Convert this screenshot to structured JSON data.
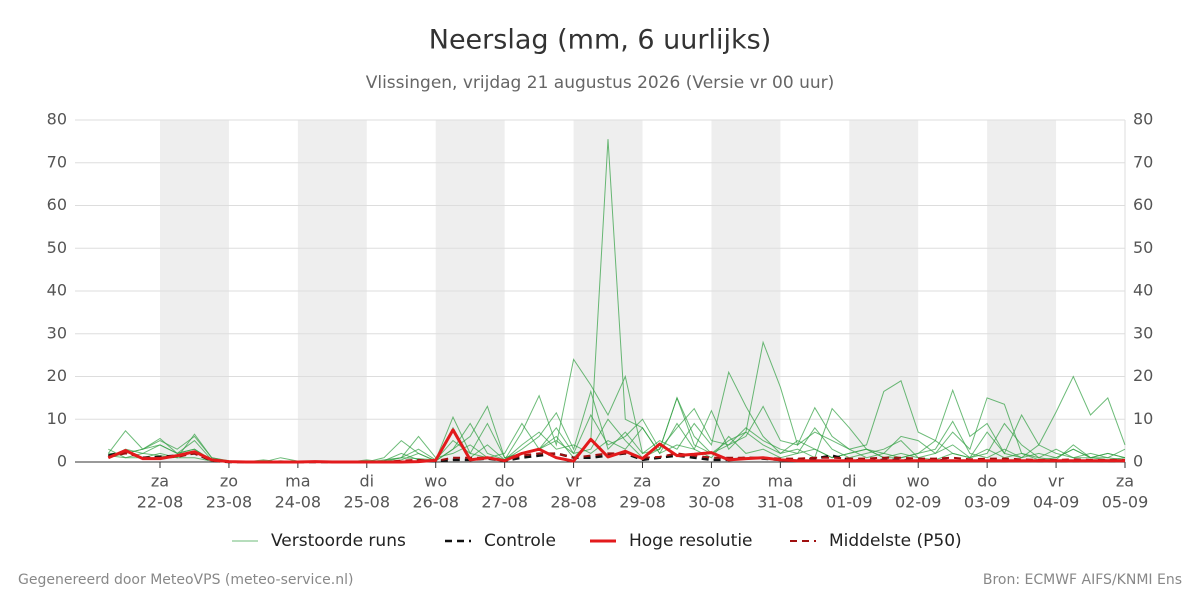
{
  "chart_data": {
    "type": "line",
    "title": "Neerslag (mm, 6 uurlijks)",
    "subtitle": "Vlissingen, vrijdag 21 augustus 2026 (Versie vr 00 uur)",
    "footer_left": "Gegenereerd door MeteoVPS (meteo-service.nl)",
    "footer_right": "Bron: ECMWF AIFS/KNMI Ens",
    "x": [
      6,
      12,
      18,
      24,
      30,
      36,
      42,
      48,
      54,
      60,
      66,
      72,
      78,
      84,
      90,
      96,
      102,
      108,
      114,
      120,
      126,
      132,
      138,
      144,
      150,
      156,
      162,
      168,
      174,
      180,
      186,
      192,
      198,
      204,
      210,
      216,
      222,
      228,
      234,
      240,
      246,
      252,
      258,
      264,
      270,
      276,
      282,
      288,
      294,
      300,
      306,
      312,
      318,
      324,
      330,
      336,
      342,
      348,
      354,
      360
    ],
    "xlim": [
      -5.6,
      360
    ],
    "xticks": [
      {
        "value": 24,
        "label": [
          "za",
          "22-08"
        ]
      },
      {
        "value": 48,
        "label": [
          "zo",
          "23-08"
        ]
      },
      {
        "value": 72,
        "label": [
          "ma",
          "24-08"
        ]
      },
      {
        "value": 96,
        "label": [
          "di",
          "25-08"
        ]
      },
      {
        "value": 120,
        "label": [
          "wo",
          "26-08"
        ]
      },
      {
        "value": 144,
        "label": [
          "do",
          "27-08"
        ]
      },
      {
        "value": 168,
        "label": [
          "vr",
          "28-08"
        ]
      },
      {
        "value": 192,
        "label": [
          "za",
          "29-08"
        ]
      },
      {
        "value": 216,
        "label": [
          "zo",
          "30-08"
        ]
      },
      {
        "value": 240,
        "label": [
          "ma",
          "31-08"
        ]
      },
      {
        "value": 264,
        "label": [
          "di",
          "01-09"
        ]
      },
      {
        "value": 288,
        "label": [
          "wo",
          "02-09"
        ]
      },
      {
        "value": 312,
        "label": [
          "do",
          "03-09"
        ]
      },
      {
        "value": 336,
        "label": [
          "vr",
          "04-09"
        ]
      },
      {
        "value": 360,
        "label": [
          "za",
          "05-09"
        ]
      }
    ],
    "ylim": [
      0,
      80
    ],
    "yticks": [
      0,
      10,
      20,
      30,
      40,
      50,
      60,
      70,
      80
    ],
    "grid": true,
    "ensemble": {
      "name": "Verstoorde runs",
      "color": "#2e9e3e",
      "members": [
        [
          2,
          7.3,
          3,
          5,
          3,
          6,
          1,
          0.2,
          0,
          0,
          0.3,
          0,
          0,
          0,
          0,
          0.5,
          0,
          1,
          3,
          0.5,
          10.5,
          2,
          9,
          1,
          2,
          3,
          6,
          1,
          5,
          75.5,
          10,
          8,
          2,
          9,
          3,
          12,
          3,
          7,
          4,
          2,
          5,
          3,
          1,
          2,
          3,
          1,
          2,
          1,
          0.5,
          2,
          1,
          3,
          1,
          2,
          0.5,
          1,
          3,
          1,
          2,
          1
        ],
        [
          3,
          1,
          2,
          4,
          2,
          5,
          0.5,
          0,
          0,
          0.5,
          0,
          0,
          0,
          0,
          0.2,
          0,
          1,
          5,
          2,
          0.3,
          3,
          9,
          2,
          0.5,
          7,
          15.5,
          4,
          24,
          18,
          11,
          20,
          2,
          5,
          3,
          9,
          4,
          21,
          13,
          6,
          2,
          3,
          1,
          12.5,
          8,
          3,
          2,
          6,
          5,
          2,
          7,
          3,
          15,
          13.5,
          2,
          1,
          0.5,
          4,
          1,
          1,
          3
        ],
        [
          1,
          3,
          2,
          1.5,
          1,
          6.5,
          1,
          0.3,
          0,
          0,
          1,
          0.2,
          0,
          0,
          0,
          0,
          0.5,
          1,
          6,
          1,
          2,
          4,
          1,
          2,
          9,
          3,
          8,
          2,
          11,
          4,
          6,
          10,
          3,
          15,
          4,
          2,
          5,
          7,
          28,
          17.5,
          4,
          12.7,
          6,
          3,
          1,
          2,
          1,
          2,
          5,
          2,
          1,
          2,
          9,
          4,
          1,
          3,
          1,
          2,
          1,
          0.5
        ],
        [
          2,
          2,
          3,
          5.5,
          2,
          3,
          0.5,
          0,
          0.2,
          0,
          0,
          0,
          0,
          0,
          0,
          0,
          0.3,
          2,
          0.5,
          0.4,
          8,
          1,
          4,
          0.5,
          3,
          6,
          11.5,
          3,
          16.5,
          3,
          7,
          2,
          3,
          8,
          12.5,
          5,
          4,
          6,
          13,
          5,
          4,
          7,
          5,
          3,
          4,
          16.5,
          19,
          7,
          5,
          16.8,
          6,
          9,
          2,
          11,
          4,
          2,
          1,
          1,
          2,
          1
        ],
        [
          1,
          2,
          3,
          4,
          2,
          3,
          0.3,
          0,
          0,
          0,
          0,
          0,
          0,
          0,
          0,
          0,
          0,
          0.5,
          2,
          0.2,
          3,
          6,
          13,
          1,
          2,
          3,
          5,
          2,
          3,
          10,
          5,
          1,
          3,
          15,
          6,
          2,
          4,
          8,
          5,
          3,
          2,
          8,
          3,
          1,
          2,
          3,
          5,
          1,
          2,
          4,
          1,
          7,
          2,
          1,
          4,
          11.7,
          20,
          11,
          15,
          4
        ],
        [
          1.5,
          1,
          1,
          2,
          1,
          1,
          0.2,
          0,
          0,
          0,
          0,
          0,
          0,
          0,
          0.2,
          0,
          0.3,
          1,
          0.8,
          0.5,
          5,
          2,
          1,
          0.5,
          4,
          7,
          3,
          4,
          2,
          5,
          3,
          8,
          2,
          4,
          3,
          1,
          6,
          2,
          3,
          1,
          2,
          3,
          1,
          2,
          3,
          1,
          1,
          2,
          3,
          9.5,
          2,
          1,
          3,
          1,
          2,
          1,
          3,
          1,
          0.5,
          1
        ]
      ]
    },
    "series": [
      {
        "name": "Controle",
        "color": "#111111",
        "dash": true,
        "width": 2.5,
        "values": [
          1.5,
          2.5,
          1,
          1.2,
          1.5,
          2,
          0.3,
          0,
          0,
          0,
          0,
          0,
          0,
          0,
          0,
          0,
          0,
          0,
          0.3,
          0.2,
          0.5,
          0.5,
          0.8,
          0.3,
          1,
          1.5,
          2,
          1,
          1,
          1.5,
          2,
          0.5,
          1,
          1.5,
          1,
          0.5,
          0.5,
          1,
          0.8,
          0.5,
          0.5,
          0.8,
          1.5,
          0.5,
          0.3,
          0.5,
          0.5,
          0.3,
          0.5,
          0.3,
          0.3,
          0.3,
          0.2,
          0.3,
          0.2,
          0.2,
          0.2,
          0.3,
          0.2,
          0.2
        ]
      },
      {
        "name": "Hoge resolutie",
        "color": "#e31a1c",
        "dash": false,
        "width": 3,
        "values": [
          1,
          2.7,
          0.8,
          0.8,
          1.5,
          2.4,
          0.5,
          0.1,
          0,
          0,
          0,
          0,
          0.1,
          0,
          0,
          0,
          0,
          0,
          0.1,
          0.4,
          7.5,
          0.5,
          1,
          0.3,
          2,
          3,
          1,
          0.2,
          5.3,
          1.2,
          2.5,
          0.8,
          4.2,
          1.5,
          1.8,
          2.2,
          0.5,
          0.8,
          1,
          0.5,
          0.3,
          0.3,
          0.3,
          0.3,
          0.3,
          0.3,
          0.3,
          0.3,
          0.3,
          0.3,
          0.3,
          0.3,
          0.3,
          0.3,
          0.3,
          0.3,
          0.3,
          0.3,
          0.3,
          0.3
        ]
      },
      {
        "name": "Middelste (P50)",
        "color": "#a01010",
        "dash": true,
        "width": 2,
        "values": [
          1.2,
          2,
          1,
          1,
          1.2,
          2,
          0.3,
          0,
          0,
          0,
          0,
          0,
          0,
          0,
          0,
          0,
          0,
          0.3,
          0.5,
          0.2,
          1,
          1,
          1,
          0.4,
          1.5,
          2,
          2,
          1,
          1.5,
          2,
          2,
          1,
          1.2,
          2,
          1.5,
          1,
          1,
          1,
          1,
          0.8,
          0.8,
          1,
          1,
          0.8,
          0.8,
          1,
          1,
          0.8,
          0.8,
          1,
          0.6,
          0.8,
          0.8,
          0.6,
          0.5,
          0.5,
          0.6,
          0.5,
          0.5,
          0.5
        ]
      }
    ]
  }
}
